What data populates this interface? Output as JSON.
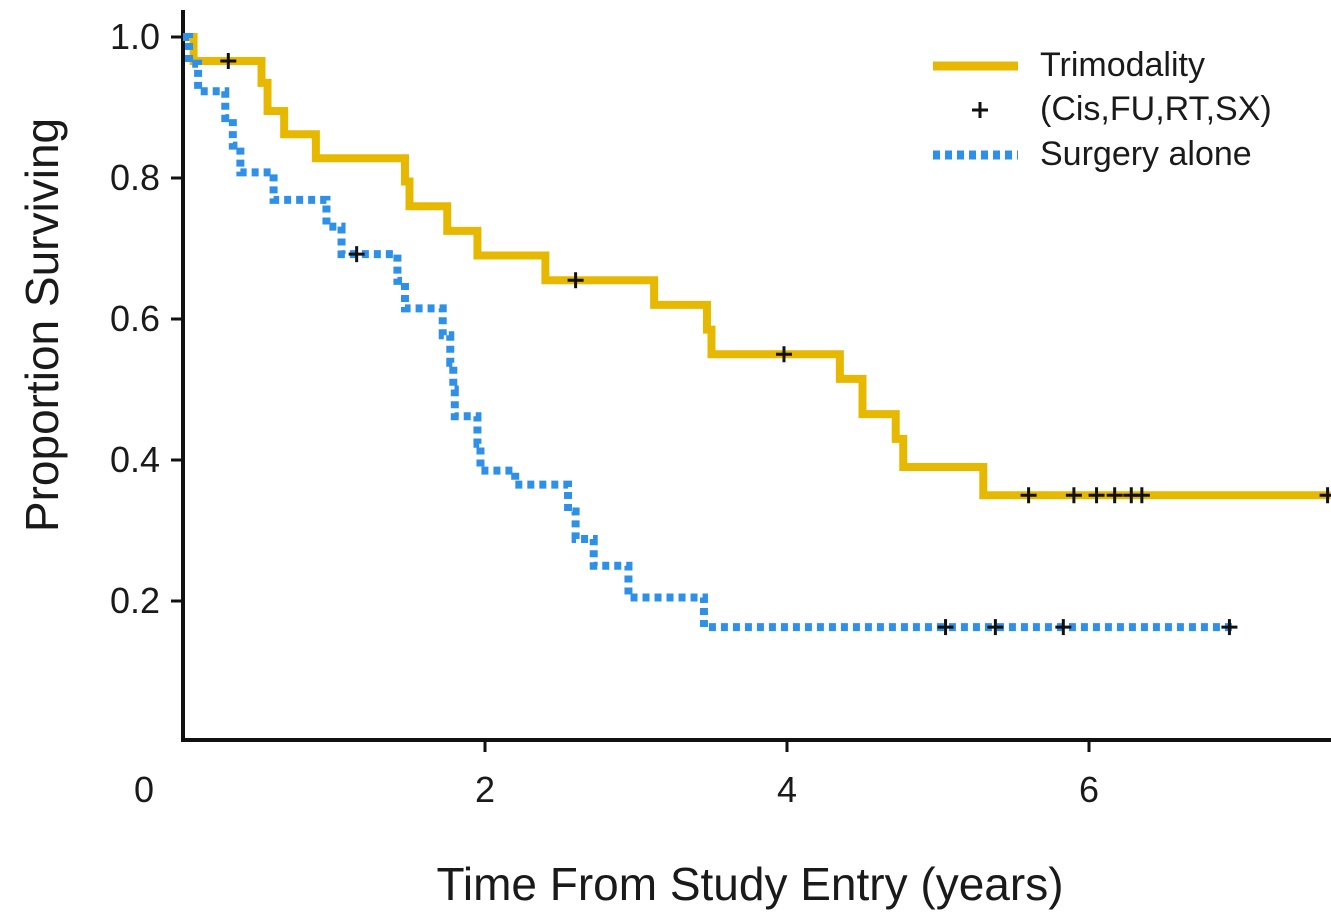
{
  "chart_data": {
    "type": "line",
    "subtype": "kaplan-meier-step",
    "xlabel": "Time From Study Entry (years)",
    "ylabel": "Proportion Surviving",
    "xlim": [
      0,
      7.6
    ],
    "ylim": [
      0,
      1.0
    ],
    "x_ticks": [
      {
        "value": 0,
        "label": "0"
      },
      {
        "value": 2,
        "label": "2"
      },
      {
        "value": 4,
        "label": "4"
      },
      {
        "value": 6,
        "label": "6"
      }
    ],
    "y_ticks": [
      {
        "value": 0.2,
        "label": "0.2"
      },
      {
        "value": 0.4,
        "label": "0.4"
      },
      {
        "value": 0.6,
        "label": "0.6"
      },
      {
        "value": 0.8,
        "label": "0.8"
      },
      {
        "value": 1.0,
        "label": "1.0"
      }
    ],
    "grid": false,
    "legend_position": "top-right",
    "legend": {
      "entries": [
        {
          "label": "Trimodality",
          "kind": "series",
          "series": "trimodality"
        },
        {
          "label": "(Cis,FU,RT,SX)",
          "kind": "censor-mark"
        },
        {
          "label": "Surgery alone",
          "kind": "series",
          "series": "surgery"
        }
      ]
    },
    "series": [
      {
        "id": "trimodality",
        "name": "Trimodality",
        "color": "#e6b800",
        "style": "solid",
        "steps": [
          [
            0,
            1.0
          ],
          [
            0.07,
            0.966
          ],
          [
            0.52,
            0.935
          ],
          [
            0.56,
            0.895
          ],
          [
            0.67,
            0.862
          ],
          [
            0.88,
            0.828
          ],
          [
            1.47,
            0.795
          ],
          [
            1.5,
            0.76
          ],
          [
            1.75,
            0.725
          ],
          [
            1.95,
            0.69
          ],
          [
            2.4,
            0.655
          ],
          [
            3.12,
            0.62
          ],
          [
            3.47,
            0.585
          ],
          [
            3.5,
            0.55
          ],
          [
            4.35,
            0.515
          ],
          [
            4.5,
            0.465
          ],
          [
            4.72,
            0.43
          ],
          [
            4.77,
            0.39
          ],
          [
            5.3,
            0.35
          ]
        ],
        "x_end": 7.6,
        "censored": [
          [
            0.3,
            0.966
          ],
          [
            2.6,
            0.655
          ],
          [
            3.98,
            0.55
          ],
          [
            5.6,
            0.35
          ],
          [
            5.9,
            0.35
          ],
          [
            6.05,
            0.35
          ],
          [
            6.17,
            0.35
          ],
          [
            6.28,
            0.35
          ],
          [
            6.35,
            0.35
          ],
          [
            7.58,
            0.35
          ]
        ]
      },
      {
        "id": "surgery",
        "name": "Surgery alone",
        "color": "#2f90e8",
        "style": "dotted",
        "steps": [
          [
            0,
            1.0
          ],
          [
            0.04,
            0.962
          ],
          [
            0.1,
            0.923
          ],
          [
            0.28,
            0.885
          ],
          [
            0.33,
            0.846
          ],
          [
            0.38,
            0.808
          ],
          [
            0.6,
            0.769
          ],
          [
            0.95,
            0.731
          ],
          [
            1.05,
            0.692
          ],
          [
            1.42,
            0.654
          ],
          [
            1.47,
            0.615
          ],
          [
            1.72,
            0.577
          ],
          [
            1.77,
            0.538
          ],
          [
            1.79,
            0.5
          ],
          [
            1.8,
            0.462
          ],
          [
            1.95,
            0.423
          ],
          [
            1.97,
            0.385
          ],
          [
            2.2,
            0.365
          ],
          [
            2.55,
            0.327
          ],
          [
            2.6,
            0.288
          ],
          [
            2.72,
            0.25
          ],
          [
            2.95,
            0.205
          ],
          [
            3.45,
            0.163
          ]
        ],
        "x_end": 6.95,
        "censored": [
          [
            1.15,
            0.692
          ],
          [
            5.05,
            0.163
          ],
          [
            5.38,
            0.163
          ],
          [
            5.83,
            0.163
          ],
          [
            6.93,
            0.163
          ]
        ]
      }
    ]
  }
}
